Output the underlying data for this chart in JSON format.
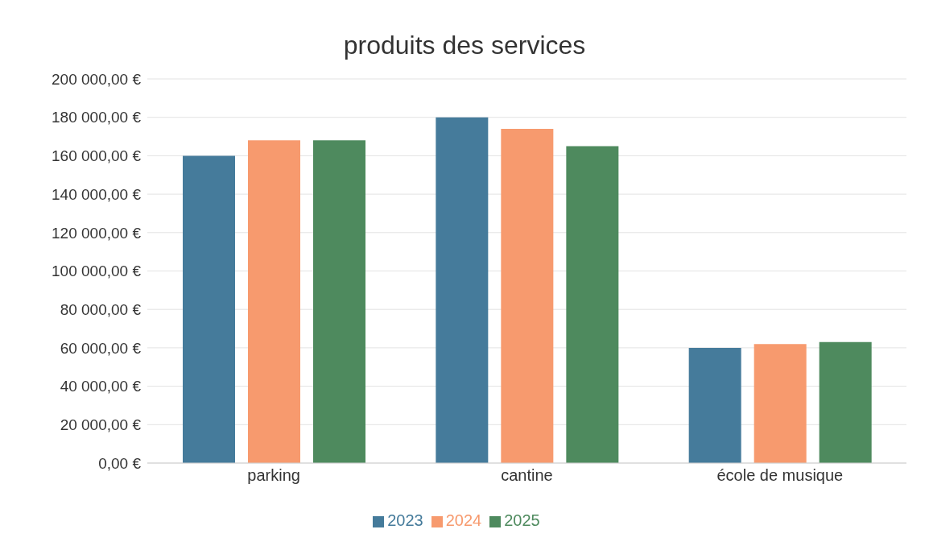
{
  "chart_data": {
    "type": "bar",
    "title": "produits des services",
    "categories": [
      "parking",
      "cantine",
      "école de musique"
    ],
    "series": [
      {
        "name": "2023",
        "color": "#457b9b",
        "values": [
          160000,
          180000,
          60000
        ]
      },
      {
        "name": "2024",
        "color": "#f79a6e",
        "values": [
          168000,
          174000,
          62000
        ]
      },
      {
        "name": "2025",
        "color": "#4e8a5e",
        "values": [
          168000,
          165000,
          63000
        ]
      }
    ],
    "ylim": [
      0,
      200000
    ],
    "yticks": [
      {
        "value": 0,
        "label": "0,00 €"
      },
      {
        "value": 20000,
        "label": "20 000,00 €"
      },
      {
        "value": 40000,
        "label": "40 000,00 €"
      },
      {
        "value": 60000,
        "label": "60 000,00 €"
      },
      {
        "value": 80000,
        "label": "80 000,00 €"
      },
      {
        "value": 100000,
        "label": "100 000,00 €"
      },
      {
        "value": 120000,
        "label": "120 000,00 €"
      },
      {
        "value": 140000,
        "label": "140 000,00 €"
      },
      {
        "value": 160000,
        "label": "160 000,00 €"
      },
      {
        "value": 180000,
        "label": "180 000,00 €"
      },
      {
        "value": 200000,
        "label": "200 000,00 €"
      }
    ],
    "grid": "y",
    "legend": "bottom"
  }
}
